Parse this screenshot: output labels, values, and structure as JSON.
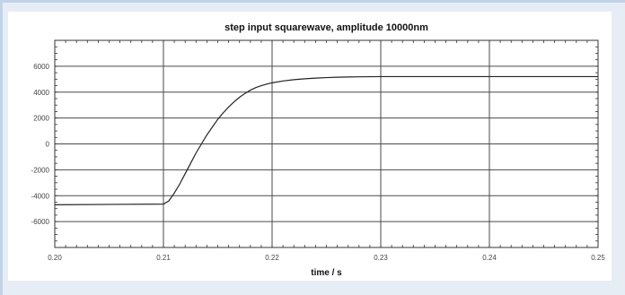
{
  "chart_data": {
    "type": "line",
    "title": "step input squarewave, amplitude 10000nm",
    "xlabel": "time / s",
    "ylabel": "",
    "xlim": [
      0.2,
      0.25
    ],
    "ylim": [
      -8000,
      8000
    ],
    "x_ticks": [
      0.2,
      0.21,
      0.22,
      0.23,
      0.24,
      0.25
    ],
    "x_tick_labels": [
      "0.20",
      "0.21",
      "0.22",
      "0.23",
      "0.24",
      "0.25"
    ],
    "y_ticks": [
      6000,
      4000,
      2000,
      0,
      -2000,
      -4000,
      -6000
    ],
    "y_tick_labels": [
      "6000",
      "4000",
      "2000",
      "0",
      "-2000",
      "-4000",
      "-6000"
    ],
    "grid": true,
    "series": [
      {
        "color": "#222222",
        "x": [
          0.2,
          0.21,
          0.2105,
          0.211,
          0.2115,
          0.212,
          0.2125,
          0.213,
          0.2135,
          0.214,
          0.2145,
          0.215,
          0.2155,
          0.216,
          0.2165,
          0.217,
          0.2175,
          0.218,
          0.2185,
          0.219,
          0.2195,
          0.22,
          0.221,
          0.222,
          0.223,
          0.224,
          0.225,
          0.226,
          0.227,
          0.228,
          0.23,
          0.24,
          0.25
        ],
        "y": [
          -4700,
          -4650,
          -4400,
          -3800,
          -3100,
          -2300,
          -1500,
          -700,
          0,
          700,
          1300,
          1900,
          2400,
          2850,
          3250,
          3600,
          3900,
          4150,
          4350,
          4500,
          4620,
          4720,
          4860,
          4960,
          5030,
          5080,
          5120,
          5150,
          5170,
          5180,
          5200,
          5200,
          5200
        ]
      }
    ]
  }
}
